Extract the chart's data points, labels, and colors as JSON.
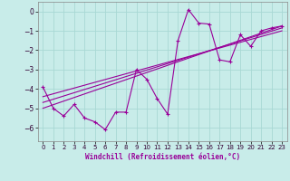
{
  "xlabel": "Windchill (Refroidissement éolien,°C)",
  "background_color": "#c8ece9",
  "grid_color": "#a8d8d4",
  "line_color": "#990099",
  "xlim": [
    -0.5,
    23.5
  ],
  "ylim": [
    -6.7,
    0.5
  ],
  "yticks": [
    0,
    -1,
    -2,
    -3,
    -4,
    -5,
    -6
  ],
  "xticks": [
    0,
    1,
    2,
    3,
    4,
    5,
    6,
    7,
    8,
    9,
    10,
    11,
    12,
    13,
    14,
    15,
    16,
    17,
    18,
    19,
    20,
    21,
    22,
    23
  ],
  "scatter_x": [
    0,
    1,
    2,
    3,
    4,
    5,
    6,
    7,
    8,
    9,
    10,
    11,
    12,
    13,
    14,
    15,
    16,
    17,
    18,
    19,
    20,
    21,
    22,
    23
  ],
  "scatter_y": [
    -3.9,
    -5.0,
    -5.4,
    -4.8,
    -5.5,
    -5.7,
    -6.1,
    -5.2,
    -5.2,
    -3.0,
    -3.5,
    -4.5,
    -5.3,
    -1.5,
    0.1,
    -0.6,
    -0.65,
    -2.5,
    -2.6,
    -1.2,
    -1.8,
    -1.0,
    -0.85,
    -0.75
  ],
  "line1_x": [
    0,
    23
  ],
  "line1_y": [
    -5.0,
    -0.75
  ],
  "line2_x": [
    0,
    23
  ],
  "line2_y": [
    -4.7,
    -0.85
  ],
  "line3_x": [
    0,
    23
  ],
  "line3_y": [
    -4.4,
    -1.0
  ]
}
